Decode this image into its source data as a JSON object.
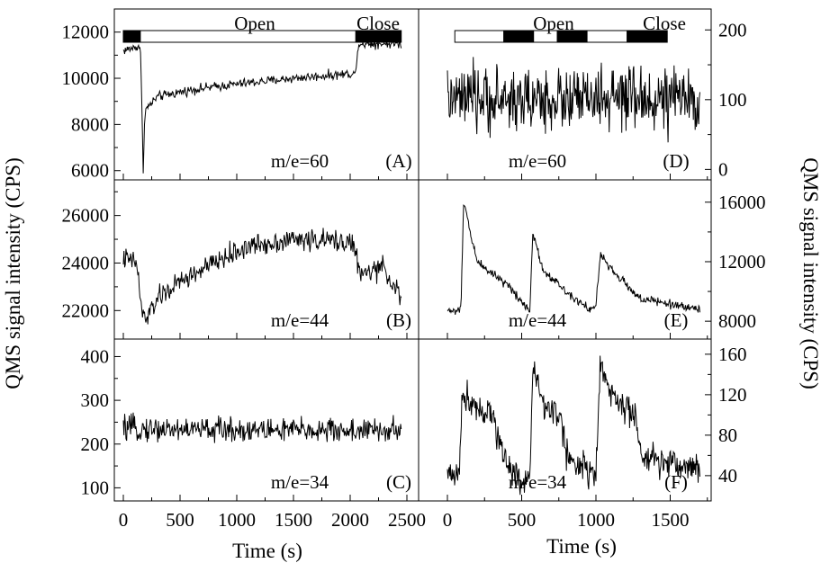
{
  "figure": {
    "ylabel_left": "QMS signal intensity (CPS)",
    "ylabel_right": "QMS signal intensity (CPS)",
    "xlabel_left": "Time (s)",
    "xlabel_right": "Time (s)"
  },
  "colors": {
    "line": "#000000",
    "frame": "#000000",
    "bar_filled": "#000000",
    "bar_open": "#ffffff"
  },
  "chart_data": [
    {
      "id": "A",
      "type": "line",
      "panel_label": "(A)",
      "mass_label": "m/e=60",
      "xlim": [
        0,
        2500
      ],
      "ylim": [
        5600,
        13000
      ],
      "ytick_side": "left",
      "yticks": [
        6000,
        8000,
        10000,
        12000
      ],
      "xticks": [
        0,
        500,
        1000,
        1500,
        2000,
        2500
      ],
      "xtick_labels_shown": false,
      "valve_bar": {
        "open_label": "Open",
        "close_label": "Close",
        "segments": [
          {
            "x0": 0,
            "x1": 150,
            "state": "close"
          },
          {
            "x0": 150,
            "x1": 2050,
            "state": "open"
          },
          {
            "x0": 2050,
            "x1": 2450,
            "state": "close"
          }
        ]
      },
      "series": [
        {
          "x_start": 0,
          "x_end": 2450,
          "noise": 200,
          "keypoints": [
            [
              0,
              11200
            ],
            [
              150,
              11400
            ],
            [
              160,
              9500
            ],
            [
              175,
              6000
            ],
            [
              190,
              8600
            ],
            [
              300,
              9200
            ],
            [
              600,
              9500
            ],
            [
              1000,
              9750
            ],
            [
              1500,
              10000
            ],
            [
              2000,
              10200
            ],
            [
              2050,
              10200
            ],
            [
              2070,
              11500
            ],
            [
              2450,
              11500
            ]
          ]
        }
      ]
    },
    {
      "id": "B",
      "type": "line",
      "panel_label": "(B)",
      "mass_label": "m/e=44",
      "xlim": [
        0,
        2500
      ],
      "ylim": [
        20800,
        27500
      ],
      "ytick_side": "left",
      "yticks": [
        22000,
        24000,
        26000
      ],
      "xticks": [
        0,
        500,
        1000,
        1500,
        2000,
        2500
      ],
      "xtick_labels_shown": false,
      "series": [
        {
          "x_start": 0,
          "x_end": 2450,
          "noise": 450,
          "keypoints": [
            [
              0,
              24200
            ],
            [
              120,
              24000
            ],
            [
              160,
              22000
            ],
            [
              200,
              21600
            ],
            [
              300,
              22500
            ],
            [
              500,
              23200
            ],
            [
              800,
              24000
            ],
            [
              1100,
              24700
            ],
            [
              1500,
              25000
            ],
            [
              2000,
              24900
            ],
            [
              2050,
              24500
            ],
            [
              2080,
              23500
            ],
            [
              2300,
              23800
            ],
            [
              2450,
              22500
            ]
          ]
        }
      ]
    },
    {
      "id": "C",
      "type": "line",
      "panel_label": "(C)",
      "mass_label": "m/e=34",
      "xlim": [
        0,
        2500
      ],
      "ylim": [
        70,
        440
      ],
      "ytick_side": "left",
      "yticks": [
        100,
        200,
        300,
        400
      ],
      "xticks": [
        0,
        500,
        1000,
        1500,
        2000,
        2500
      ],
      "xtick_labels_shown": true,
      "series": [
        {
          "x_start": 0,
          "x_end": 2450,
          "noise": 28,
          "keypoints": [
            [
              0,
              235
            ],
            [
              2450,
              230
            ]
          ]
        }
      ]
    },
    {
      "id": "D",
      "type": "line",
      "panel_label": "(D)",
      "mass_label": "m/e=60",
      "xlim": [
        0,
        1800
      ],
      "ylim": [
        -15,
        230
      ],
      "ytick_side": "right",
      "yticks": [
        0,
        100,
        200
      ],
      "xticks": [
        0,
        500,
        1000,
        1500
      ],
      "xtick_labels_shown": false,
      "valve_bar": {
        "open_label": "Open",
        "close_label": "Close",
        "segments": [
          {
            "x0": 50,
            "x1": 380,
            "state": "open"
          },
          {
            "x0": 380,
            "x1": 580,
            "state": "close"
          },
          {
            "x0": 580,
            "x1": 740,
            "state": "open"
          },
          {
            "x0": 740,
            "x1": 940,
            "state": "close"
          },
          {
            "x0": 940,
            "x1": 1210,
            "state": "open"
          },
          {
            "x0": 1210,
            "x1": 1480,
            "state": "close"
          }
        ]
      },
      "series": [
        {
          "x_start": 0,
          "x_end": 1700,
          "noise": 45,
          "keypoints": [
            [
              0,
              100
            ],
            [
              1700,
              100
            ]
          ]
        }
      ]
    },
    {
      "id": "E",
      "type": "line",
      "panel_label": "(E)",
      "mass_label": "m/e=44",
      "xlim": [
        0,
        1800
      ],
      "ylim": [
        6800,
        17500
      ],
      "ytick_side": "right",
      "yticks": [
        8000,
        12000,
        16000
      ],
      "xticks": [
        0,
        500,
        1000,
        1500
      ],
      "xtick_labels_shown": false,
      "series": [
        {
          "x_start": 0,
          "x_end": 1700,
          "noise": 300,
          "keypoints": [
            [
              0,
              8700
            ],
            [
              90,
              8700
            ],
            [
              110,
              16000
            ],
            [
              200,
              12000
            ],
            [
              400,
              10500
            ],
            [
              530,
              9000
            ],
            [
              555,
              8800
            ],
            [
              575,
              14000
            ],
            [
              640,
              11500
            ],
            [
              800,
              10000
            ],
            [
              960,
              8800
            ],
            [
              1000,
              9000
            ],
            [
              1030,
              12500
            ],
            [
              1100,
              11500
            ],
            [
              1300,
              9500
            ],
            [
              1700,
              8800
            ]
          ]
        }
      ]
    },
    {
      "id": "F",
      "type": "line",
      "panel_label": "(F)",
      "mass_label": "m/e=34",
      "xlim": [
        0,
        1800
      ],
      "ylim": [
        15,
        175
      ],
      "ytick_side": "right",
      "yticks": [
        40,
        80,
        120,
        160
      ],
      "xticks": [
        0,
        500,
        1000,
        1500
      ],
      "xtick_labels_shown": true,
      "series": [
        {
          "x_start": 0,
          "x_end": 1700,
          "noise": 15,
          "keypoints": [
            [
              0,
              40
            ],
            [
              80,
              45
            ],
            [
              100,
              120
            ],
            [
              300,
              100
            ],
            [
              380,
              60
            ],
            [
              480,
              35
            ],
            [
              555,
              40
            ],
            [
              575,
              145
            ],
            [
              650,
              110
            ],
            [
              760,
              100
            ],
            [
              800,
              60
            ],
            [
              1000,
              40
            ],
            [
              1030,
              150
            ],
            [
              1100,
              120
            ],
            [
              1250,
              100
            ],
            [
              1320,
              55
            ],
            [
              1700,
              48
            ]
          ]
        }
      ]
    }
  ]
}
